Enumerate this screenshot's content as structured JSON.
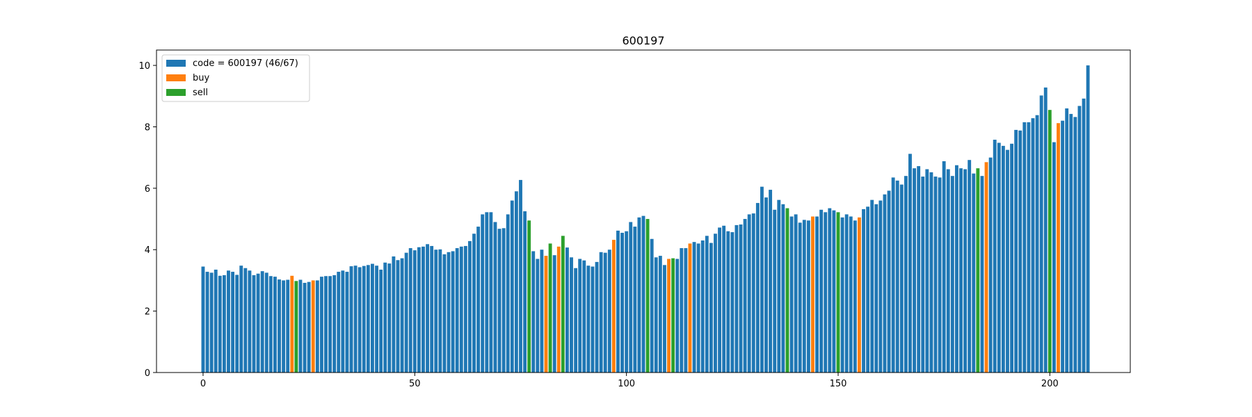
{
  "chart_data": {
    "type": "bar",
    "title": "600197",
    "xlabel": "",
    "ylabel": "",
    "xlim": [
      -11,
      219
    ],
    "ylim": [
      0,
      10.5
    ],
    "xticks": [
      0,
      50,
      100,
      150,
      200
    ],
    "yticks": [
      0,
      2,
      4,
      6,
      8,
      10
    ],
    "grid": false,
    "legend_position": "top-left",
    "colors": {
      "price": "#1f77b4",
      "buy": "#ff7f0e",
      "sell": "#2ca02c"
    },
    "series": [
      {
        "name": "code = 600197 (46/67)",
        "color": "#1f77b4"
      },
      {
        "name": "buy",
        "color": "#ff7f0e"
      },
      {
        "name": "sell",
        "color": "#2ca02c"
      }
    ],
    "buy_indices": [
      21,
      26,
      81,
      84,
      97,
      110,
      115,
      144,
      155,
      185,
      202
    ],
    "sell_indices": [
      22,
      77,
      82,
      85,
      105,
      111,
      138,
      150,
      183,
      200
    ],
    "values": [
      3.45,
      3.28,
      3.25,
      3.35,
      3.15,
      3.17,
      3.32,
      3.28,
      3.18,
      3.48,
      3.4,
      3.32,
      3.17,
      3.22,
      3.3,
      3.25,
      3.14,
      3.12,
      3.03,
      3.0,
      3.02,
      3.15,
      2.98,
      3.02,
      2.92,
      2.95,
      3.0,
      3.0,
      3.12,
      3.14,
      3.14,
      3.17,
      3.28,
      3.32,
      3.28,
      3.46,
      3.48,
      3.43,
      3.47,
      3.5,
      3.54,
      3.48,
      3.35,
      3.58,
      3.55,
      3.78,
      3.66,
      3.72,
      3.9,
      4.05,
      3.98,
      4.08,
      4.1,
      4.18,
      4.12,
      4.0,
      4.01,
      3.85,
      3.92,
      3.95,
      4.05,
      4.1,
      4.12,
      4.28,
      4.52,
      4.75,
      5.15,
      5.22,
      5.22,
      4.9,
      4.68,
      4.7,
      5.15,
      5.6,
      5.9,
      6.27,
      5.25,
      4.95,
      3.95,
      3.7,
      4.0,
      3.8,
      4.2,
      3.82,
      4.1,
      4.45,
      4.07,
      3.75,
      3.4,
      3.7,
      3.65,
      3.48,
      3.45,
      3.6,
      3.92,
      3.9,
      4.0,
      4.32,
      4.62,
      4.55,
      4.6,
      4.9,
      4.75,
      5.05,
      5.1,
      5.0,
      4.35,
      3.75,
      3.8,
      3.5,
      3.7,
      3.72,
      3.7,
      4.05,
      4.05,
      4.2,
      4.25,
      4.2,
      4.3,
      4.45,
      4.22,
      4.52,
      4.72,
      4.78,
      4.6,
      4.57,
      4.8,
      4.82,
      5.0,
      5.15,
      5.18,
      5.52,
      6.05,
      5.7,
      5.95,
      5.3,
      5.62,
      5.48,
      5.35,
      5.08,
      5.15,
      4.88,
      4.97,
      4.95,
      5.08,
      5.08,
      5.3,
      5.22,
      5.35,
      5.28,
      5.22,
      5.05,
      5.15,
      5.08,
      4.95,
      5.05,
      5.32,
      5.4,
      5.62,
      5.48,
      5.6,
      5.8,
      5.92,
      6.35,
      6.25,
      6.12,
      6.4,
      7.12,
      6.65,
      6.72,
      6.38,
      6.62,
      6.52,
      6.38,
      6.35,
      6.88,
      6.62,
      6.4,
      6.75,
      6.65,
      6.62,
      6.92,
      6.48,
      6.65,
      6.4,
      6.85,
      7.0,
      7.58,
      7.48,
      7.38,
      7.25,
      7.45,
      7.9,
      7.88,
      8.15,
      8.15,
      8.28,
      8.38,
      9.02,
      9.28,
      8.55,
      7.5,
      8.12,
      8.2,
      8.6,
      8.42,
      8.32,
      8.68,
      8.92,
      10.0
    ]
  }
}
